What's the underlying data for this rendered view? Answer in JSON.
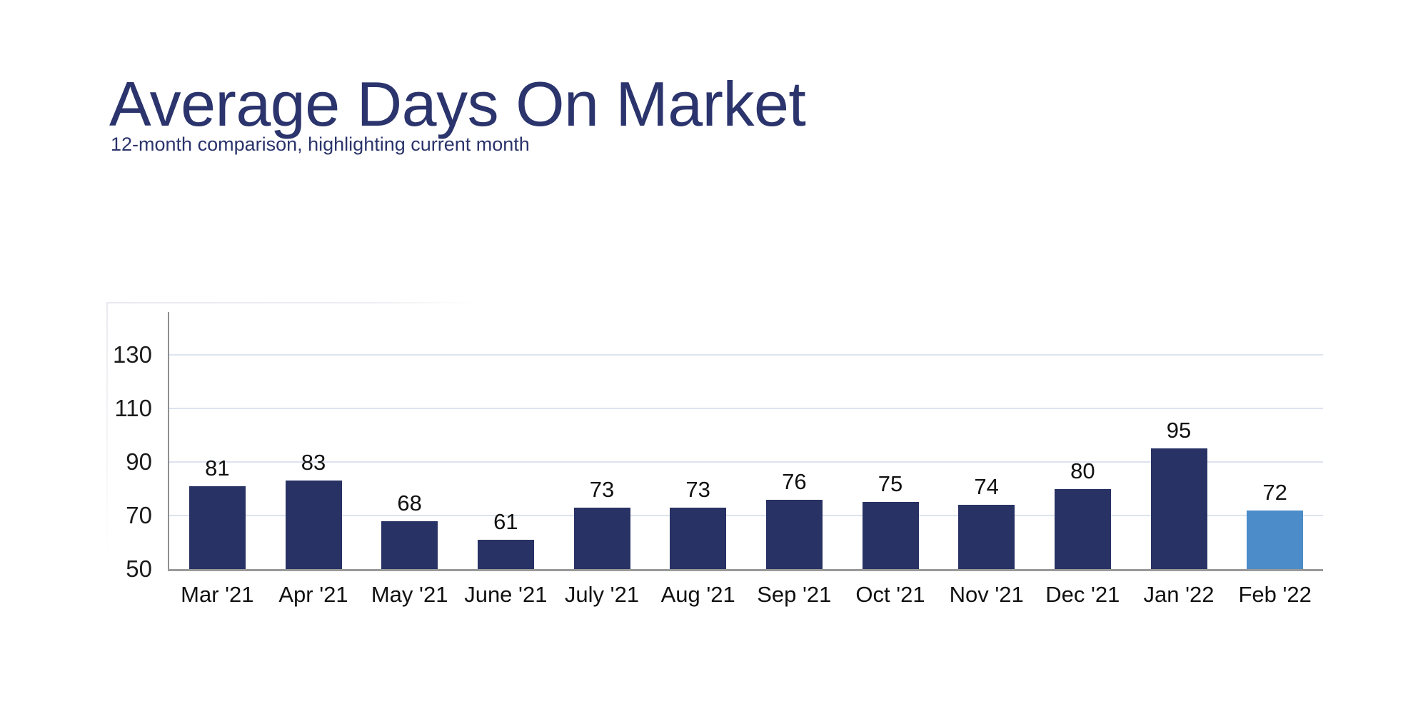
{
  "header": {
    "title": "Average Days On Market",
    "subtitle": "12-month comparison, highlighting current month"
  },
  "colors": {
    "title_text": "#2b346c",
    "bar": "#293264",
    "bar_highlight": "#4b8cc9",
    "gridline": "#dde3ef",
    "axis": "#909090",
    "label_text": "#111111"
  },
  "chart_data": {
    "type": "bar",
    "title": "Average Days On Market",
    "subtitle": "12-month comparison, highlighting current month",
    "categories": [
      "Mar '21",
      "Apr '21",
      "May '21",
      "June '21",
      "July '21",
      "Aug '21",
      "Sep '21",
      "Oct '21",
      "Nov '21",
      "Dec '21",
      "Jan '22",
      "Feb '22"
    ],
    "values": [
      81,
      83,
      68,
      61,
      73,
      73,
      76,
      75,
      74,
      80,
      95,
      72
    ],
    "highlight_index": 11,
    "highlight_meaning": "current month",
    "xlabel": "",
    "ylabel": "",
    "y_ticks": [
      50,
      70,
      90,
      110,
      130
    ],
    "ylim": [
      50,
      146
    ],
    "grid": true,
    "legend": false
  }
}
